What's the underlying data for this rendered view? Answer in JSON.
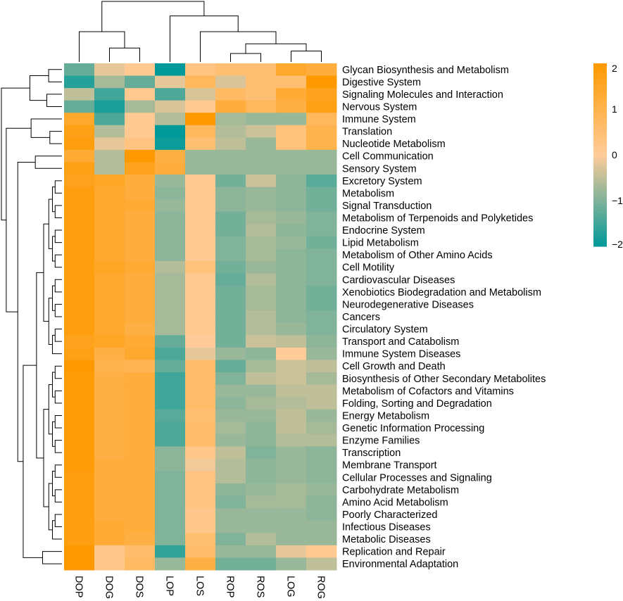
{
  "chart_data": {
    "type": "heatmap",
    "title": "",
    "columns": [
      "DOP",
      "DOG",
      "DOS",
      "LOP",
      "LOS",
      "ROP",
      "ROS",
      "LOG",
      "ROG"
    ],
    "rows": [
      "Glycan Biosynthesis and Metabolism",
      "Digestive System",
      "Signaling Molecules and Interaction",
      "Nervous System",
      "Immune System",
      "Translation",
      "Nucleotide Metabolism",
      "Cell Communication",
      "Sensory System",
      "Excretory System",
      "Metabolism",
      "Signal Transduction",
      "Metabolism of Terpenoids and Polyketides",
      "Endocrine System",
      "Lipid Metabolism",
      "Metabolism of Other Amino Acids",
      "Cell Motility",
      "Cardiovascular Diseases",
      "Xenobiotics Biodegradation and Metabolism",
      "Neurodegenerative Diseases",
      "Cancers",
      "Circulatory System",
      "Transport and Catabolism",
      "Immune System Diseases",
      "Cell Growth and Death",
      "Biosynthesis of Other Secondary Metabolites",
      "Metabolism of Cofactors and Vitamins",
      "Folding, Sorting and Degradation",
      "Energy Metabolism",
      "Genetic Information Processing",
      "Enzyme Families",
      "Transcription",
      "Membrane Transport",
      "Cellular Processes and Signaling",
      "Carbohydrate Metabolism",
      "Amino Acid Metabolism",
      "Poorly Characterized",
      "Infectious Diseases",
      "Metabolic Diseases",
      "Replication and Repair",
      "Environmental Adaptation"
    ],
    "values": [
      [
        -1.2,
        -0.2,
        0.1,
        -2.0,
        0.3,
        0.5,
        0.5,
        1.4,
        1.2
      ],
      [
        -1.7,
        -0.7,
        -1.2,
        -0.2,
        0.8,
        -0.3,
        0.5,
        0.5,
        2.0
      ],
      [
        -0.5,
        -1.5,
        0.1,
        -1.4,
        -0.3,
        0.7,
        0.5,
        1.3,
        1.6
      ],
      [
        -1.2,
        -1.8,
        -0.7,
        -0.3,
        0.1,
        1.2,
        0.8,
        1.1,
        1.7
      ],
      [
        1.4,
        -1.4,
        0.1,
        -0.6,
        2.0,
        -0.7,
        -0.8,
        -0.8,
        0.8
      ],
      [
        1.7,
        -0.6,
        0.1,
        -2.0,
        0.8,
        -0.6,
        -0.4,
        0.4,
        1.0
      ],
      [
        1.8,
        -0.2,
        0.3,
        -1.9,
        0.5,
        -0.5,
        -0.8,
        0.4,
        1.0
      ],
      [
        1.3,
        -0.6,
        2.0,
        1.1,
        -0.8,
        -0.8,
        -0.8,
        -0.8,
        -0.8
      ],
      [
        1.7,
        -0.6,
        1.6,
        1.2,
        -0.8,
        -0.8,
        -0.8,
        -0.8,
        -0.8
      ],
      [
        1.6,
        1.5,
        1.2,
        -0.8,
        0.1,
        -1.1,
        -0.4,
        -0.9,
        -1.3
      ],
      [
        1.8,
        1.4,
        1.2,
        -0.9,
        0.1,
        -0.9,
        -0.8,
        -0.9,
        -1.1
      ],
      [
        1.8,
        1.4,
        1.3,
        -0.8,
        0.1,
        -0.9,
        -0.8,
        -0.9,
        -1.1
      ],
      [
        1.8,
        1.4,
        1.2,
        -0.9,
        0.1,
        -1.1,
        -0.7,
        -0.8,
        -1.0
      ],
      [
        1.8,
        1.4,
        1.2,
        -0.9,
        0.1,
        -1.1,
        -0.6,
        -0.9,
        -1.0
      ],
      [
        1.8,
        1.4,
        1.2,
        -0.9,
        0.1,
        -1.0,
        -0.7,
        -0.8,
        -1.1
      ],
      [
        1.8,
        1.4,
        1.2,
        -0.9,
        0.1,
        -1.0,
        -0.7,
        -0.9,
        -1.0
      ],
      [
        1.8,
        1.5,
        1.3,
        -0.6,
        0.4,
        -1.1,
        -0.8,
        -0.9,
        -1.0
      ],
      [
        1.8,
        1.4,
        1.2,
        -0.7,
        0.1,
        -1.2,
        -0.6,
        -0.9,
        -1.0
      ],
      [
        1.8,
        1.4,
        1.2,
        -0.7,
        0.1,
        -1.1,
        -0.7,
        -0.9,
        -1.1
      ],
      [
        1.8,
        1.4,
        1.2,
        -0.7,
        0.1,
        -1.1,
        -0.7,
        -0.9,
        -1.1
      ],
      [
        1.8,
        1.4,
        1.2,
        -0.7,
        0.1,
        -1.1,
        -0.6,
        -0.9,
        -1.0
      ],
      [
        1.8,
        1.4,
        1.1,
        -0.7,
        0.1,
        -1.1,
        -0.6,
        -0.8,
        -1.0
      ],
      [
        1.6,
        1.5,
        1.3,
        -1.2,
        0.0,
        -1.1,
        -0.4,
        -0.5,
        -0.9
      ],
      [
        1.7,
        1.1,
        1.4,
        -1.4,
        -0.2,
        -0.8,
        -0.9,
        0.0,
        -0.8
      ],
      [
        2.0,
        1.0,
        0.9,
        -1.2,
        0.6,
        -1.2,
        -0.7,
        -0.4,
        -0.5
      ],
      [
        1.9,
        1.1,
        1.2,
        -1.5,
        0.6,
        -1.0,
        -0.5,
        -0.4,
        -0.7
      ],
      [
        1.9,
        1.1,
        1.2,
        -1.5,
        0.6,
        -0.8,
        -0.8,
        -0.5,
        -0.5
      ],
      [
        1.9,
        1.1,
        1.2,
        -1.5,
        0.6,
        -0.9,
        -0.7,
        -0.6,
        -0.5
      ],
      [
        1.9,
        1.1,
        1.2,
        -1.3,
        0.5,
        -0.8,
        -0.8,
        -0.5,
        -0.8
      ],
      [
        1.9,
        1.1,
        1.2,
        -1.4,
        0.6,
        -0.7,
        -0.9,
        -0.5,
        -0.7
      ],
      [
        1.9,
        1.1,
        1.2,
        -1.4,
        0.6,
        -0.8,
        -0.9,
        -0.6,
        -0.6
      ],
      [
        1.9,
        1.1,
        1.2,
        -0.9,
        0.2,
        -0.5,
        -1.0,
        -0.8,
        -0.9
      ],
      [
        1.9,
        1.2,
        1.2,
        -0.9,
        -0.1,
        -0.6,
        -0.9,
        -0.8,
        -0.9
      ],
      [
        1.8,
        1.2,
        1.2,
        -1.0,
        0.3,
        -0.6,
        -0.9,
        -0.8,
        -0.9
      ],
      [
        1.8,
        1.2,
        1.2,
        -1.0,
        0.3,
        -0.9,
        -0.8,
        -0.7,
        -0.8
      ],
      [
        1.8,
        1.2,
        1.2,
        -1.0,
        0.3,
        -1.0,
        -0.7,
        -0.7,
        -0.9
      ],
      [
        1.8,
        1.2,
        1.2,
        -1.0,
        0.2,
        -0.8,
        -0.8,
        -0.8,
        -0.9
      ],
      [
        1.8,
        1.3,
        1.2,
        -1.0,
        0.2,
        -0.8,
        -0.8,
        -0.8,
        -0.8
      ],
      [
        1.8,
        1.3,
        1.1,
        -1.0,
        0.5,
        -1.0,
        -0.6,
        -0.8,
        -0.8
      ],
      [
        2.0,
        0.2,
        0.6,
        -1.6,
        0.6,
        -0.8,
        -0.8,
        -0.2,
        0.1
      ],
      [
        2.0,
        0.2,
        0.7,
        -0.8,
        1.1,
        -1.1,
        -1.1,
        -0.8,
        -0.5
      ]
    ],
    "color_scale": {
      "min": -2,
      "max": 2,
      "low": "#009999",
      "mid": "#FFCC99",
      "high": "#FF9900"
    },
    "legend": {
      "ticks": [
        "2",
        "1",
        "0",
        "−1",
        "−2"
      ],
      "tick_values": [
        2,
        1,
        0,
        -1,
        -2
      ],
      "placement": "right"
    },
    "col_tree": {
      "h": 10,
      "c": [
        {
          "h": 5,
          "c": [
            0,
            {
              "h": 2.3,
              "c": [
                1,
                2
              ]
            }
          ]
        },
        {
          "h": 7.6,
          "c": [
            3,
            {
              "h": 5,
              "c": [
                4,
                {
                  "h": 3,
                  "c": [
                    {
                      "h": 1.4,
                      "c": [
                        5,
                        6
                      ]
                    },
                    {
                      "h": 1.8,
                      "c": [
                        7,
                        8
                      ]
                    }
                  ]
                }
              ]
            }
          ]
        }
      ]
    },
    "row_tree": {
      "h": 10,
      "c": [
        {
          "h": 5.3,
          "c": [
            {
              "h": 2.2,
              "c": [
                0,
                1
              ]
            },
            {
              "h": 2.5,
              "c": [
                2,
                3
              ]
            }
          ]
        },
        {
          "h": 9.2,
          "c": [
            {
              "h": 5.1,
              "c": [
                4,
                {
                  "h": 2,
                  "c": [
                    5,
                    6
                  ]
                }
              ]
            },
            {
              "h": 7.3,
              "c": [
                {
                  "h": 4.4,
                  "c": [
                    7,
                    8
                  ]
                },
                {
                  "h": 6.4,
                  "c": [
                    {
                      "h": 4.2,
                      "c": [
                        "range",
                        9,
                        38
                      ]
                    },
                    {
                      "h": 3.2,
                      "c": [
                        39,
                        40
                      ]
                    }
                  ]
                }
              ]
            }
          ]
        }
      ]
    }
  }
}
